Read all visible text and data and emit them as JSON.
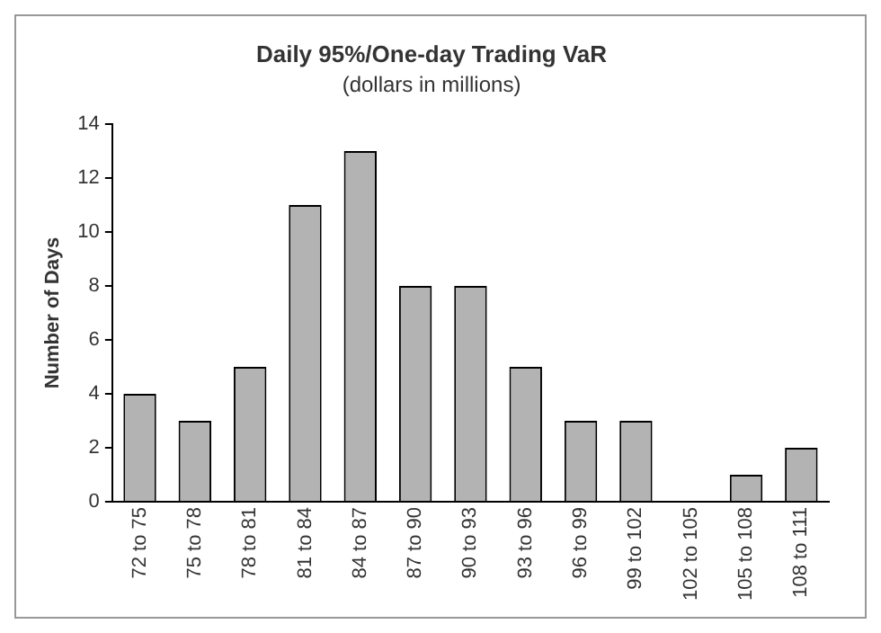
{
  "chart_data": {
    "type": "bar",
    "title": "Daily 95%/One-day Trading VaR",
    "subtitle": "(dollars in millions)",
    "ylabel": "Number of Days",
    "categories": [
      "72 to 75",
      "75 to 78",
      "78 to 81",
      "81 to 84",
      "84 to 87",
      "87 to 90",
      "90 to 93",
      "93 to 96",
      "96 to 99",
      "99 to 102",
      "102 to 105",
      "105 to 108",
      "108 to 111"
    ],
    "values": [
      4,
      3,
      5,
      11,
      13,
      8,
      8,
      5,
      3,
      3,
      0,
      1,
      2
    ],
    "color": "#b3b3b3",
    "ylim": [
      0,
      14
    ],
    "yticks": [
      0,
      2,
      4,
      6,
      8,
      10,
      12,
      14
    ],
    "grid": false,
    "legend": false
  }
}
